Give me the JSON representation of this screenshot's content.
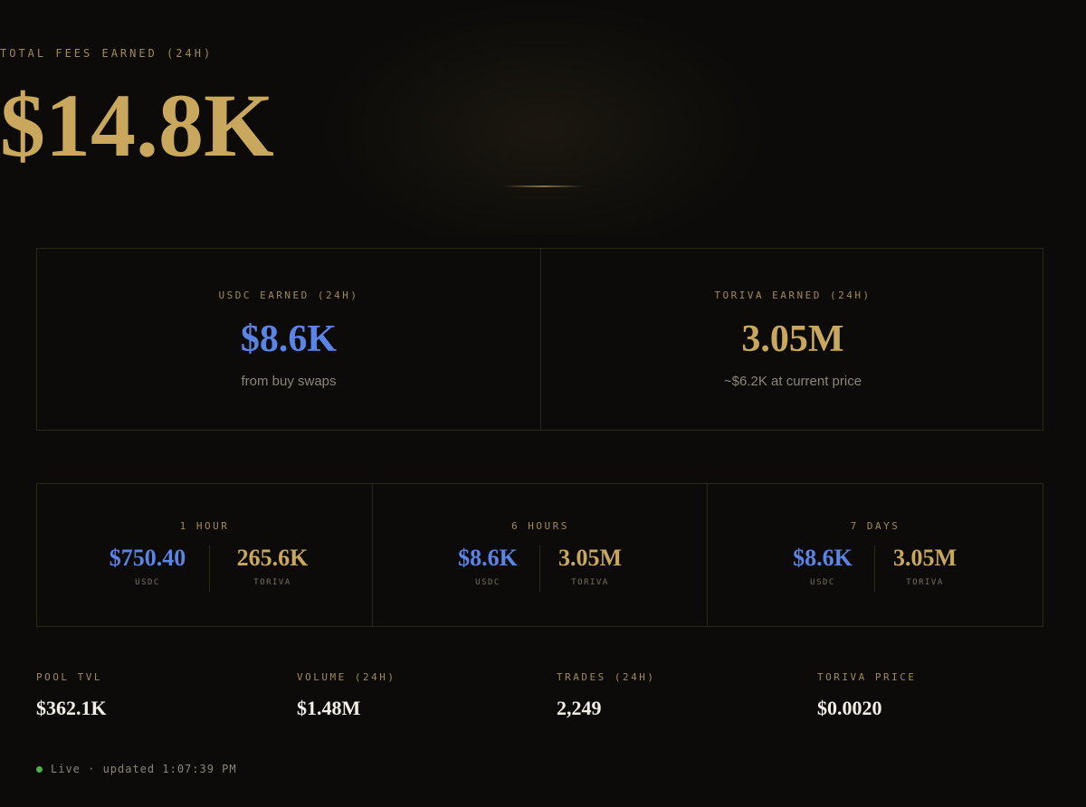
{
  "hero": {
    "label": "TOTAL FEES EARNED (24H)",
    "value": "$14.8K"
  },
  "earned": {
    "usdc": {
      "label": "USDC EARNED (24H)",
      "value": "$8.6K",
      "sub": "from buy swaps"
    },
    "toriva": {
      "label": "TORIVA EARNED (24H)",
      "value": "3.05M",
      "sub": "~$6.2K at current price"
    }
  },
  "periods": [
    {
      "label": "1 HOUR",
      "usdc": "$750.40",
      "usdc_unit": "USDC",
      "toriva": "265.6K",
      "toriva_unit": "TORIVA"
    },
    {
      "label": "6 HOURS",
      "usdc": "$8.6K",
      "usdc_unit": "USDC",
      "toriva": "3.05M",
      "toriva_unit": "TORIVA"
    },
    {
      "label": "7 DAYS",
      "usdc": "$8.6K",
      "usdc_unit": "USDC",
      "toriva": "3.05M",
      "toriva_unit": "TORIVA"
    }
  ],
  "stats": [
    {
      "label": "POOL TVL",
      "value": "$362.1K"
    },
    {
      "label": "VOLUME (24H)",
      "value": "$1.48M"
    },
    {
      "label": "TRADES (24H)",
      "value": "2,249"
    },
    {
      "label": "TORIVA PRICE",
      "value": "$0.0020"
    }
  ],
  "status": {
    "text": "Live · updated 1:07:39 PM",
    "dot_color": "#4caf50"
  },
  "colors": {
    "gold": "#c9a85e",
    "blue": "#5a84e6",
    "background": "#0c0b09"
  }
}
